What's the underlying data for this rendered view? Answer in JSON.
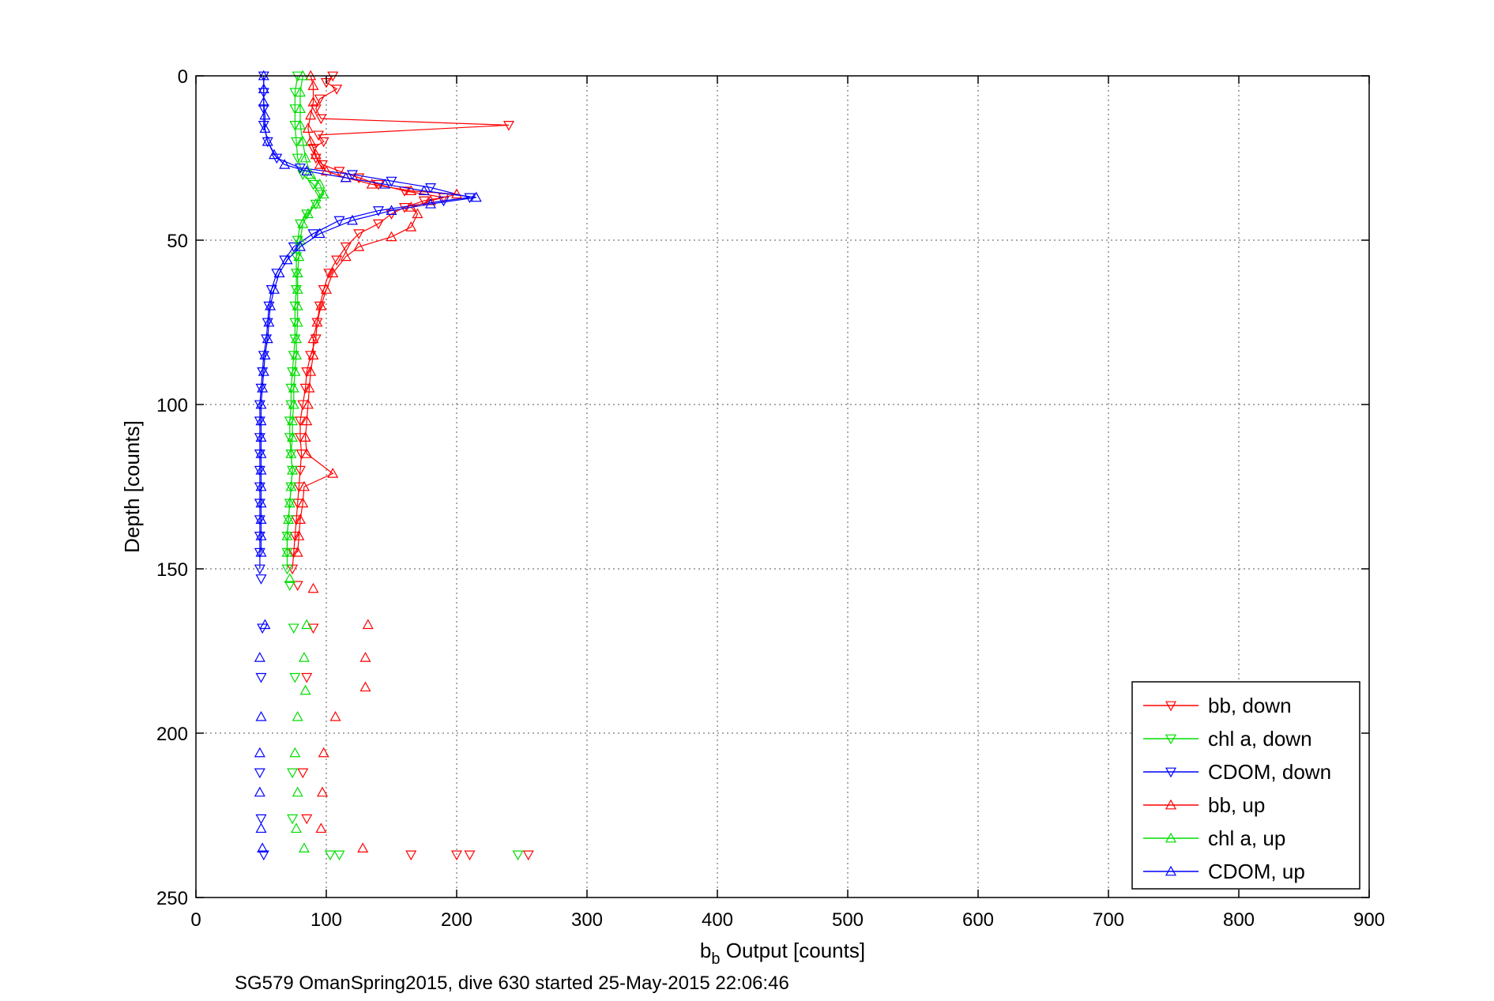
{
  "chart_data": {
    "type": "scatter",
    "title": "",
    "xlabel": "b_b Output [counts]",
    "xlabel_main": "b",
    "xlabel_sub": "b",
    "xlabel_rest": " Output [counts]",
    "ylabel": "Depth [counts]",
    "caption": "SG579 OmanSpring2015, dive 630 started 25-May-2015 22:06:46",
    "xlim": [
      0,
      900
    ],
    "ylim": [
      0,
      250
    ],
    "y_reversed": true,
    "grid": true,
    "legend_position": "bottom-right",
    "xticks": [
      "0",
      "100",
      "200",
      "300",
      "400",
      "500",
      "600",
      "700",
      "800",
      "900"
    ],
    "yticks": [
      "0",
      "50",
      "100",
      "150",
      "200",
      "250"
    ],
    "series": [
      {
        "name": "bb, down",
        "color": "#ff0000",
        "marker": "triangle-down",
        "points": [
          [
            105,
            0
          ],
          [
            100,
            2
          ],
          [
            108,
            4
          ],
          [
            95,
            7
          ],
          [
            92,
            10
          ],
          [
            96,
            13
          ],
          [
            240,
            15
          ],
          [
            94,
            18
          ],
          [
            98,
            20
          ],
          [
            90,
            22
          ],
          [
            92,
            25
          ],
          [
            97,
            27
          ],
          [
            110,
            29
          ],
          [
            125,
            31
          ],
          [
            140,
            33
          ],
          [
            160,
            35
          ],
          [
            190,
            37
          ],
          [
            175,
            38
          ],
          [
            160,
            40
          ],
          [
            150,
            42
          ],
          [
            140,
            45
          ],
          [
            125,
            48
          ],
          [
            115,
            52
          ],
          [
            108,
            56
          ],
          [
            102,
            60
          ],
          [
            98,
            65
          ],
          [
            95,
            70
          ],
          [
            93,
            75
          ],
          [
            92,
            80
          ],
          [
            88,
            85
          ],
          [
            85,
            90
          ],
          [
            84,
            95
          ],
          [
            82,
            100
          ],
          [
            80,
            105
          ],
          [
            80,
            110
          ],
          [
            81,
            115
          ],
          [
            80,
            120
          ],
          [
            79,
            125
          ],
          [
            78,
            130
          ],
          [
            77,
            135
          ],
          [
            76,
            140
          ],
          [
            75,
            145
          ],
          [
            74,
            150
          ],
          [
            78,
            155
          ],
          [
            90,
            168
          ],
          [
            85,
            183
          ],
          [
            82,
            212
          ],
          [
            85,
            226
          ],
          [
            165,
            237
          ],
          [
            200,
            237
          ],
          [
            210,
            237
          ],
          [
            255,
            237
          ]
        ]
      },
      {
        "name": "chl a, down",
        "color": "#00dd00",
        "marker": "triangle-down",
        "points": [
          [
            78,
            0
          ],
          [
            76,
            5
          ],
          [
            76,
            10
          ],
          [
            76,
            15
          ],
          [
            77,
            20
          ],
          [
            78,
            25
          ],
          [
            82,
            30
          ],
          [
            90,
            33
          ],
          [
            95,
            36
          ],
          [
            92,
            39
          ],
          [
            85,
            42
          ],
          [
            80,
            45
          ],
          [
            78,
            50
          ],
          [
            77,
            55
          ],
          [
            77,
            60
          ],
          [
            77,
            65
          ],
          [
            76,
            70
          ],
          [
            76,
            75
          ],
          [
            76,
            80
          ],
          [
            75,
            85
          ],
          [
            74,
            90
          ],
          [
            73,
            95
          ],
          [
            73,
            100
          ],
          [
            72,
            105
          ],
          [
            72,
            110
          ],
          [
            73,
            115
          ],
          [
            74,
            120
          ],
          [
            73,
            125
          ],
          [
            72,
            130
          ],
          [
            71,
            135
          ],
          [
            70,
            140
          ],
          [
            70,
            145
          ],
          [
            70,
            150
          ],
          [
            72,
            155
          ],
          [
            75,
            168
          ],
          [
            76,
            183
          ],
          [
            74,
            212
          ],
          [
            74,
            226
          ],
          [
            103,
            237
          ],
          [
            110,
            237
          ],
          [
            247,
            237
          ]
        ]
      },
      {
        "name": "CDOM, down",
        "color": "#0000ff",
        "marker": "triangle-down",
        "points": [
          [
            52,
            0
          ],
          [
            52,
            5
          ],
          [
            52,
            10
          ],
          [
            52,
            15
          ],
          [
            55,
            20
          ],
          [
            62,
            25
          ],
          [
            80,
            28
          ],
          [
            120,
            30
          ],
          [
            150,
            32
          ],
          [
            180,
            34
          ],
          [
            210,
            37
          ],
          [
            190,
            38
          ],
          [
            140,
            41
          ],
          [
            110,
            44
          ],
          [
            90,
            48
          ],
          [
            75,
            52
          ],
          [
            68,
            56
          ],
          [
            62,
            60
          ],
          [
            58,
            65
          ],
          [
            56,
            70
          ],
          [
            55,
            75
          ],
          [
            54,
            80
          ],
          [
            52,
            85
          ],
          [
            51,
            90
          ],
          [
            50,
            95
          ],
          [
            49,
            100
          ],
          [
            49,
            105
          ],
          [
            49,
            110
          ],
          [
            49,
            115
          ],
          [
            49,
            120
          ],
          [
            49,
            125
          ],
          [
            49,
            130
          ],
          [
            49,
            135
          ],
          [
            49,
            140
          ],
          [
            49,
            145
          ],
          [
            49,
            150
          ],
          [
            50,
            153
          ],
          [
            51,
            168
          ],
          [
            50,
            183
          ],
          [
            49,
            212
          ],
          [
            50,
            226
          ],
          [
            52,
            237
          ]
        ]
      },
      {
        "name": "bb, up",
        "color": "#ff0000",
        "marker": "triangle-up",
        "points": [
          [
            88,
            0
          ],
          [
            90,
            3
          ],
          [
            90,
            8
          ],
          [
            88,
            12
          ],
          [
            86,
            16
          ],
          [
            88,
            20
          ],
          [
            92,
            24
          ],
          [
            95,
            27
          ],
          [
            100,
            29
          ],
          [
            115,
            31
          ],
          [
            135,
            33
          ],
          [
            165,
            35
          ],
          [
            200,
            36
          ],
          [
            180,
            38
          ],
          [
            165,
            40
          ],
          [
            170,
            42
          ],
          [
            165,
            46
          ],
          [
            150,
            49
          ],
          [
            125,
            52
          ],
          [
            115,
            55
          ],
          [
            105,
            60
          ],
          [
            100,
            65
          ],
          [
            96,
            70
          ],
          [
            93,
            75
          ],
          [
            90,
            80
          ],
          [
            90,
            85
          ],
          [
            88,
            90
          ],
          [
            87,
            95
          ],
          [
            86,
            100
          ],
          [
            85,
            105
          ],
          [
            84,
            110
          ],
          [
            85,
            115
          ],
          [
            105,
            121
          ],
          [
            83,
            125
          ],
          [
            82,
            130
          ],
          [
            80,
            135
          ],
          [
            79,
            140
          ],
          [
            78,
            145
          ],
          [
            90,
            156
          ],
          [
            132,
            167
          ],
          [
            130,
            177
          ],
          [
            130,
            186
          ],
          [
            107,
            195
          ],
          [
            98,
            206
          ],
          [
            97,
            218
          ],
          [
            96,
            229
          ],
          [
            128,
            235
          ]
        ]
      },
      {
        "name": "chl a, up",
        "color": "#00dd00",
        "marker": "triangle-up",
        "points": [
          [
            82,
            0
          ],
          [
            80,
            5
          ],
          [
            80,
            10
          ],
          [
            80,
            15
          ],
          [
            82,
            20
          ],
          [
            84,
            25
          ],
          [
            88,
            30
          ],
          [
            95,
            33
          ],
          [
            98,
            36
          ],
          [
            92,
            39
          ],
          [
            86,
            42
          ],
          [
            82,
            45
          ],
          [
            80,
            50
          ],
          [
            79,
            55
          ],
          [
            78,
            60
          ],
          [
            78,
            65
          ],
          [
            78,
            70
          ],
          [
            78,
            75
          ],
          [
            77,
            80
          ],
          [
            77,
            85
          ],
          [
            76,
            90
          ],
          [
            75,
            95
          ],
          [
            75,
            100
          ],
          [
            74,
            105
          ],
          [
            74,
            110
          ],
          [
            73,
            115
          ],
          [
            74,
            120
          ],
          [
            73,
            125
          ],
          [
            72,
            130
          ],
          [
            71,
            135
          ],
          [
            70,
            140
          ],
          [
            70,
            145
          ],
          [
            72,
            153
          ],
          [
            85,
            167
          ],
          [
            83,
            177
          ],
          [
            84,
            187
          ],
          [
            78,
            195
          ],
          [
            76,
            206
          ],
          [
            78,
            218
          ],
          [
            77,
            229
          ],
          [
            83,
            235
          ]
        ]
      },
      {
        "name": "CDOM, up",
        "color": "#0000ff",
        "marker": "triangle-up",
        "points": [
          [
            52,
            0
          ],
          [
            52,
            4
          ],
          [
            52,
            8
          ],
          [
            53,
            12
          ],
          [
            53,
            16
          ],
          [
            55,
            20
          ],
          [
            60,
            24
          ],
          [
            68,
            27
          ],
          [
            85,
            29
          ],
          [
            115,
            31
          ],
          [
            145,
            33
          ],
          [
            175,
            35
          ],
          [
            215,
            37
          ],
          [
            180,
            39
          ],
          [
            150,
            41
          ],
          [
            120,
            44
          ],
          [
            95,
            48
          ],
          [
            80,
            52
          ],
          [
            70,
            56
          ],
          [
            64,
            60
          ],
          [
            60,
            65
          ],
          [
            57,
            70
          ],
          [
            56,
            75
          ],
          [
            55,
            80
          ],
          [
            53,
            85
          ],
          [
            52,
            90
          ],
          [
            51,
            95
          ],
          [
            50,
            100
          ],
          [
            50,
            105
          ],
          [
            50,
            110
          ],
          [
            50,
            115
          ],
          [
            50,
            120
          ],
          [
            50,
            125
          ],
          [
            50,
            130
          ],
          [
            50,
            135
          ],
          [
            50,
            140
          ],
          [
            50,
            145
          ],
          [
            53,
            167
          ],
          [
            49,
            177
          ],
          [
            50,
            195
          ],
          [
            49,
            206
          ],
          [
            49,
            218
          ],
          [
            50,
            229
          ],
          [
            51,
            235
          ]
        ]
      }
    ]
  }
}
